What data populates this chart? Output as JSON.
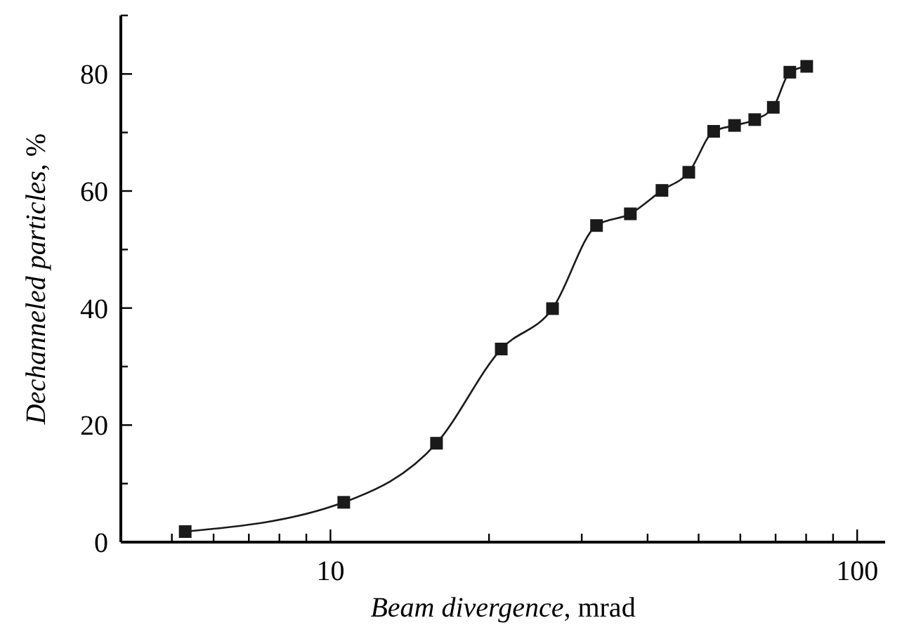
{
  "chart_data": {
    "type": "line",
    "xlabel": "Beam divergence, mrad",
    "ylabel": "Dechanneled particles, %",
    "log": "x",
    "marker": "square",
    "line_style": "solid",
    "xlim": [
      4,
      113
    ],
    "xticks": [
      {
        "value": 5,
        "label": null
      },
      {
        "value": 6,
        "label": null
      },
      {
        "value": 7,
        "label": null
      },
      {
        "value": 8,
        "label": null
      },
      {
        "value": 9,
        "label": null
      },
      10,
      {
        "value": 20,
        "label": null
      },
      {
        "value": 30,
        "label": null
      },
      {
        "value": 40,
        "label": null
      },
      {
        "value": 50,
        "label": null
      },
      {
        "value": 60,
        "label": null
      },
      {
        "value": 70,
        "label": null
      },
      {
        "value": 80,
        "label": null
      },
      {
        "value": 90,
        "label": null
      },
      100
    ],
    "ylim": [
      0,
      90
    ],
    "yticks": [
      0,
      {
        "value": 10,
        "label": null
      },
      20,
      {
        "value": 30,
        "label": null
      },
      40,
      {
        "value": 50,
        "label": null
      },
      60,
      {
        "value": 70,
        "label": null
      },
      80,
      {
        "value": 90,
        "label": null
      }
    ],
    "series": [
      {
        "color": "#1a1a1a",
        "x": [
          5.3,
          10.6,
          15.9,
          21.1,
          26.4,
          32.0,
          37.1,
          42.6,
          47.9,
          53.4,
          58.5,
          63.9,
          69.3,
          74.5,
          80.2
        ],
        "values": [
          1.8,
          6.8,
          16.9,
          33.0,
          39.9,
          54.1,
          56.1,
          60.1,
          63.2,
          70.2,
          71.2,
          72.2,
          74.3,
          80.3,
          81.3
        ]
      }
    ]
  }
}
